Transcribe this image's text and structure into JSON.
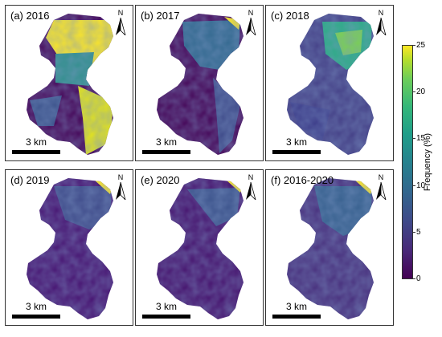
{
  "panels": [
    {
      "title": "(a) 2016",
      "scale_label": "3 km",
      "north_label": "N",
      "level": "high"
    },
    {
      "title": "(b) 2017",
      "scale_label": "3 km",
      "north_label": "N",
      "level": "low"
    },
    {
      "title": "(c) 2018",
      "scale_label": "3 km",
      "north_label": "N",
      "level": "medium"
    },
    {
      "title": "(d) 2019",
      "scale_label": "3 km",
      "north_label": "N",
      "level": "low"
    },
    {
      "title": "(e) 2020",
      "scale_label": "3 km",
      "north_label": "N",
      "level": "low"
    },
    {
      "title": "(f) 2016-2020",
      "scale_label": "3 km",
      "north_label": "N",
      "level": "medium-low"
    }
  ],
  "colorbar": {
    "label": "Frequency (%)",
    "ticks": [
      "0",
      "5",
      "10",
      "15",
      "20",
      "25"
    ],
    "colormap": "viridis",
    "colors": {
      "low": "#440154",
      "mid": "#21918c",
      "high": "#fde725"
    }
  }
}
